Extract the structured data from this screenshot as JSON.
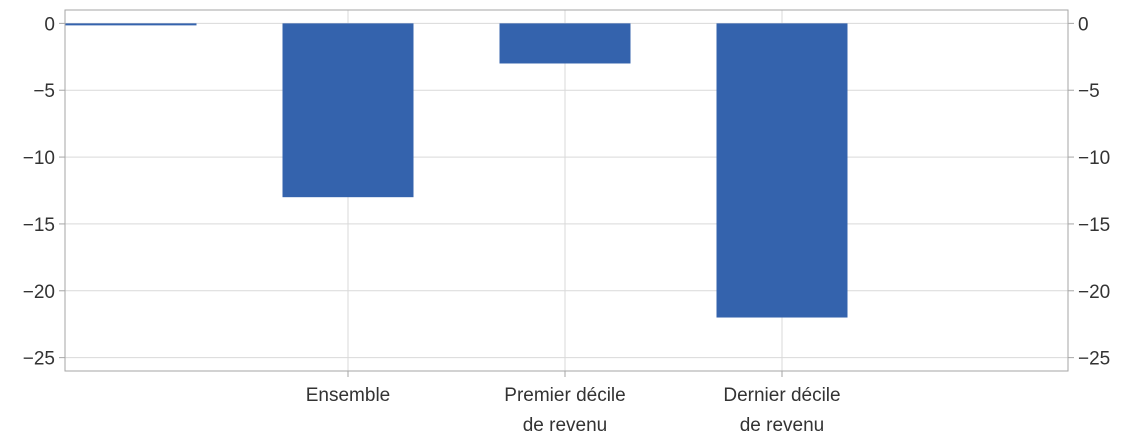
{
  "chart_data": {
    "type": "bar",
    "categories": [
      {
        "lines": [
          ""
        ]
      },
      {
        "lines": [
          "Ensemble"
        ]
      },
      {
        "lines": [
          "Premier décile",
          "de revenu"
        ]
      },
      {
        "lines": [
          "Dernier décile",
          "de revenu"
        ]
      }
    ],
    "values": [
      0,
      -13,
      -3,
      -22
    ],
    "ylim": [
      -26,
      1
    ],
    "yticks": [
      {
        "value": 0,
        "label": "0"
      },
      {
        "value": -5,
        "label": "−5"
      },
      {
        "value": -10,
        "label": "−10"
      },
      {
        "value": -15,
        "label": "−15"
      },
      {
        "value": -20,
        "label": "−20"
      },
      {
        "value": -25,
        "label": "−25"
      }
    ],
    "grid": true,
    "right_axis": true,
    "colors": {
      "bar": "#3463ad",
      "grid": "#d9d9d9",
      "frame": "#a6a6a6",
      "text": "#333333"
    }
  }
}
